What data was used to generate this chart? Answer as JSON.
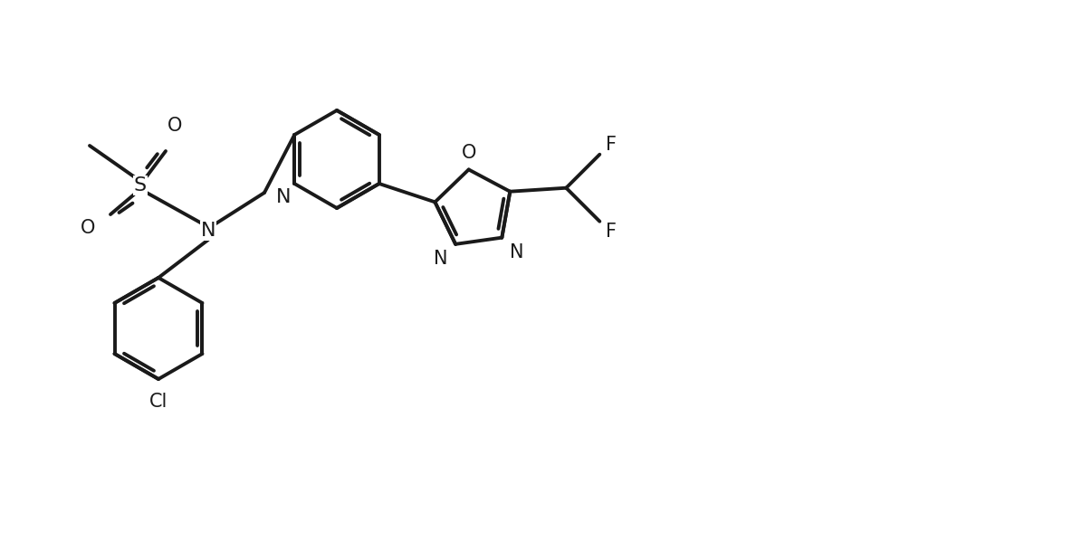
{
  "background_color": "#ffffff",
  "line_color": "#1a1a1a",
  "line_width": 2.8,
  "font_size": 15,
  "figsize": [
    11.84,
    5.98
  ],
  "dpi": 100,
  "xlim": [
    0,
    11.84
  ],
  "ylim": [
    0,
    5.98
  ]
}
